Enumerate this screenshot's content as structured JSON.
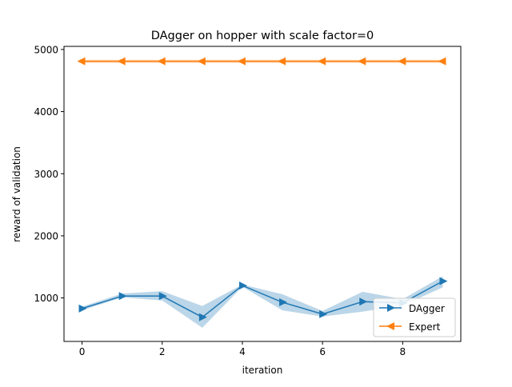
{
  "chart_data": {
    "type": "line",
    "title": "DAgger on hopper with scale factor=0",
    "xlabel": "iteration",
    "ylabel": "reward of validation",
    "xlim": [
      -0.45,
      9.45
    ],
    "ylim": [
      300,
      5050
    ],
    "x_ticks": [
      0,
      2,
      4,
      6,
      8
    ],
    "y_ticks": [
      1000,
      2000,
      3000,
      4000,
      5000
    ],
    "grid": false,
    "legend_position": "lower-right",
    "x": [
      0,
      1,
      2,
      3,
      4,
      5,
      6,
      7,
      8,
      9
    ],
    "series": [
      {
        "name": "DAgger",
        "color": "#1f77b4",
        "marker": "triangle-right",
        "values": [
          830,
          1030,
          1030,
          690,
          1200,
          930,
          740,
          940,
          920,
          1270
        ],
        "band_lower": [
          800,
          1010,
          960,
          520,
          1180,
          800,
          700,
          780,
          880,
          1170
        ],
        "band_upper": [
          860,
          1070,
          1110,
          870,
          1215,
          1060,
          790,
          1100,
          980,
          1350
        ]
      },
      {
        "name": "Expert",
        "color": "#ff7f0e",
        "marker": "triangle-left",
        "values": [
          4810,
          4810,
          4810,
          4810,
          4810,
          4810,
          4810,
          4810,
          4810,
          4810
        ],
        "band_lower": [
          4785,
          4785,
          4785,
          4785,
          4785,
          4785,
          4785,
          4785,
          4785,
          4785
        ],
        "band_upper": [
          4835,
          4835,
          4835,
          4835,
          4835,
          4835,
          4835,
          4835,
          4835,
          4835
        ]
      }
    ]
  }
}
